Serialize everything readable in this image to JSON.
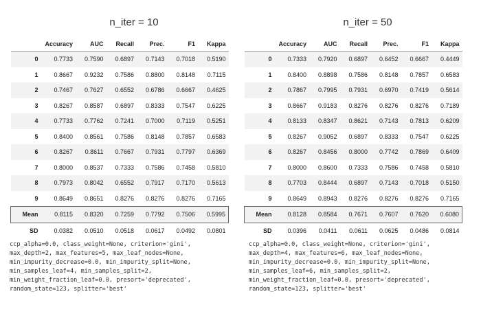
{
  "columns": [
    "",
    "Accuracy",
    "AUC",
    "Recall",
    "Prec.",
    "F1",
    "Kappa"
  ],
  "left": {
    "title": "n_iter = 10",
    "rows": [
      [
        "0",
        "0.7733",
        "0.7590",
        "0.6897",
        "0.7143",
        "0.7018",
        "0.5190"
      ],
      [
        "1",
        "0.8667",
        "0.9232",
        "0.7586",
        "0.8800",
        "0.8148",
        "0.7115"
      ],
      [
        "2",
        "0.7467",
        "0.7627",
        "0.6552",
        "0.6786",
        "0.6667",
        "0.4625"
      ],
      [
        "3",
        "0.8267",
        "0.8587",
        "0.6897",
        "0.8333",
        "0.7547",
        "0.6225"
      ],
      [
        "4",
        "0.7733",
        "0.7762",
        "0.7241",
        "0.7000",
        "0.7119",
        "0.5251"
      ],
      [
        "5",
        "0.8400",
        "0.8561",
        "0.7586",
        "0.8148",
        "0.7857",
        "0.6583"
      ],
      [
        "6",
        "0.8267",
        "0.8611",
        "0.7667",
        "0.7931",
        "0.7797",
        "0.6369"
      ],
      [
        "7",
        "0.8000",
        "0.8537",
        "0.7333",
        "0.7586",
        "0.7458",
        "0.5810"
      ],
      [
        "8",
        "0.7973",
        "0.8042",
        "0.6552",
        "0.7917",
        "0.7170",
        "0.5613"
      ],
      [
        "9",
        "0.8649",
        "0.8651",
        "0.8276",
        "0.8276",
        "0.8276",
        "0.7165"
      ],
      [
        "Mean",
        "0.8115",
        "0.8320",
        "0.7259",
        "0.7792",
        "0.7506",
        "0.5995"
      ],
      [
        "SD",
        "0.0382",
        "0.0510",
        "0.0518",
        "0.0617",
        "0.0492",
        "0.0801"
      ]
    ],
    "params": "ccp_alpha=0.0, class_weight=None, criterion='gini',\nmax_depth=2, max_features=5, max_leaf_nodes=None,\nmin_impurity_decrease=0.0, min_impurity_split=None,\nmin_samples_leaf=4, min_samples_split=2,\nmin_weight_fraction_leaf=0.0, presort='deprecated',\nrandom_state=123, splitter='best'"
  },
  "right": {
    "title": "n_iter = 50",
    "rows": [
      [
        "0",
        "0.7333",
        "0.7920",
        "0.6897",
        "0.6452",
        "0.6667",
        "0.4449"
      ],
      [
        "1",
        "0.8400",
        "0.8898",
        "0.7586",
        "0.8148",
        "0.7857",
        "0.6583"
      ],
      [
        "2",
        "0.7867",
        "0.7995",
        "0.7931",
        "0.6970",
        "0.7419",
        "0.5614"
      ],
      [
        "3",
        "0.8667",
        "0.9183",
        "0.8276",
        "0.8276",
        "0.8276",
        "0.7189"
      ],
      [
        "4",
        "0.8133",
        "0.8347",
        "0.8621",
        "0.7143",
        "0.7813",
        "0.6209"
      ],
      [
        "5",
        "0.8267",
        "0.9052",
        "0.6897",
        "0.8333",
        "0.7547",
        "0.6225"
      ],
      [
        "6",
        "0.8267",
        "0.8456",
        "0.8000",
        "0.7742",
        "0.7869",
        "0.6409"
      ],
      [
        "7",
        "0.8000",
        "0.8600",
        "0.7333",
        "0.7586",
        "0.7458",
        "0.5810"
      ],
      [
        "8",
        "0.7703",
        "0.8444",
        "0.6897",
        "0.7143",
        "0.7018",
        "0.5150"
      ],
      [
        "9",
        "0.8649",
        "0.8943",
        "0.8276",
        "0.8276",
        "0.8276",
        "0.7165"
      ],
      [
        "Mean",
        "0.8128",
        "0.8584",
        "0.7671",
        "0.7607",
        "0.7620",
        "0.6080"
      ],
      [
        "SD",
        "0.0396",
        "0.0411",
        "0.0611",
        "0.0625",
        "0.0486",
        "0.0814"
      ]
    ],
    "params": "ccp_alpha=0.0, class_weight=None, criterion='gini',\nmax_depth=4, max_features=6, max_leaf_nodes=None,\nmin_impurity_decrease=0.0, min_impurity_split=None,\nmin_samples_leaf=6, min_samples_split=2,\nmin_weight_fraction_leaf=0.0, presort='deprecated',\nrandom_state=123, splitter='best'"
  }
}
